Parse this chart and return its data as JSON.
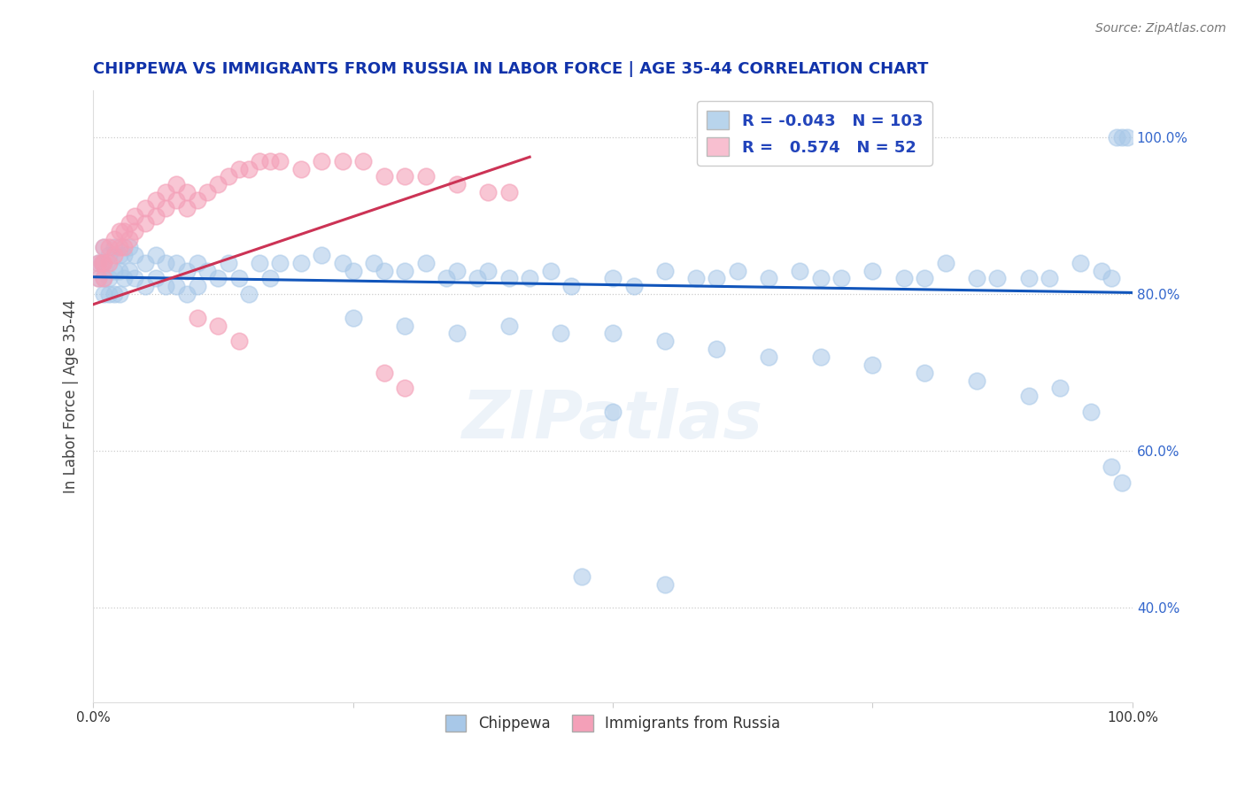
{
  "title": "CHIPPEWA VS IMMIGRANTS FROM RUSSIA IN LABOR FORCE | AGE 35-44 CORRELATION CHART",
  "source": "Source: ZipAtlas.com",
  "ylabel": "In Labor Force | Age 35-44",
  "legend_label1": "Chippewa",
  "legend_label2": "Immigrants from Russia",
  "R1": -0.043,
  "N1": 103,
  "R2": 0.574,
  "N2": 52,
  "xlim": [
    0.0,
    1.0
  ],
  "ylim": [
    0.28,
    1.06
  ],
  "yticks": [
    0.4,
    0.6,
    0.8,
    1.0
  ],
  "ytick_labels": [
    "40.0%",
    "60.0%",
    "80.0%",
    "100.0%"
  ],
  "color_blue": "#a8c8e8",
  "color_pink": "#f4a0b8",
  "trendline_blue": "#1155bb",
  "trendline_pink": "#cc3355",
  "legend_box_blue": "#b8d4ec",
  "legend_box_pink": "#f8bfd0",
  "background_color": "#ffffff",
  "grid_color": "#cccccc",
  "watermark": "ZIPatlas",
  "blue_x": [
    0.005,
    0.005,
    0.008,
    0.01,
    0.01,
    0.01,
    0.01,
    0.015,
    0.015,
    0.015,
    0.02,
    0.02,
    0.02,
    0.025,
    0.025,
    0.025,
    0.03,
    0.03,
    0.035,
    0.035,
    0.04,
    0.04,
    0.05,
    0.05,
    0.06,
    0.06,
    0.07,
    0.07,
    0.08,
    0.08,
    0.09,
    0.09,
    0.1,
    0.1,
    0.11,
    0.12,
    0.13,
    0.14,
    0.15,
    0.16,
    0.17,
    0.18,
    0.2,
    0.22,
    0.24,
    0.25,
    0.27,
    0.28,
    0.3,
    0.32,
    0.34,
    0.35,
    0.37,
    0.38,
    0.4,
    0.42,
    0.44,
    0.46,
    0.5,
    0.52,
    0.55,
    0.58,
    0.6,
    0.62,
    0.65,
    0.68,
    0.7,
    0.72,
    0.75,
    0.78,
    0.8,
    0.82,
    0.85,
    0.87,
    0.9,
    0.92,
    0.95,
    0.97,
    0.98,
    0.985,
    0.99,
    0.995,
    0.25,
    0.3,
    0.35,
    0.4,
    0.45,
    0.5,
    0.55,
    0.6,
    0.65,
    0.7,
    0.75,
    0.8,
    0.85,
    0.9,
    0.93,
    0.96,
    0.98,
    0.99,
    0.5,
    0.47,
    0.55
  ],
  "blue_y": [
    0.84,
    0.82,
    0.84,
    0.84,
    0.86,
    0.82,
    0.8,
    0.85,
    0.82,
    0.8,
    0.86,
    0.83,
    0.8,
    0.85,
    0.83,
    0.8,
    0.85,
    0.82,
    0.86,
    0.83,
    0.85,
    0.82,
    0.84,
    0.81,
    0.85,
    0.82,
    0.84,
    0.81,
    0.84,
    0.81,
    0.83,
    0.8,
    0.84,
    0.81,
    0.83,
    0.82,
    0.84,
    0.82,
    0.8,
    0.84,
    0.82,
    0.84,
    0.84,
    0.85,
    0.84,
    0.83,
    0.84,
    0.83,
    0.83,
    0.84,
    0.82,
    0.83,
    0.82,
    0.83,
    0.82,
    0.82,
    0.83,
    0.81,
    0.82,
    0.81,
    0.83,
    0.82,
    0.82,
    0.83,
    0.82,
    0.83,
    0.82,
    0.82,
    0.83,
    0.82,
    0.82,
    0.84,
    0.82,
    0.82,
    0.82,
    0.82,
    0.84,
    0.83,
    0.82,
    1.0,
    1.0,
    1.0,
    0.77,
    0.76,
    0.75,
    0.76,
    0.75,
    0.75,
    0.74,
    0.73,
    0.72,
    0.72,
    0.71,
    0.7,
    0.69,
    0.67,
    0.68,
    0.65,
    0.58,
    0.56,
    0.65,
    0.44,
    0.43
  ],
  "pink_x": [
    0.005,
    0.005,
    0.008,
    0.01,
    0.01,
    0.01,
    0.015,
    0.015,
    0.02,
    0.02,
    0.025,
    0.025,
    0.03,
    0.03,
    0.035,
    0.035,
    0.04,
    0.04,
    0.05,
    0.05,
    0.06,
    0.06,
    0.07,
    0.07,
    0.08,
    0.08,
    0.09,
    0.09,
    0.1,
    0.11,
    0.12,
    0.13,
    0.14,
    0.15,
    0.16,
    0.17,
    0.18,
    0.2,
    0.22,
    0.24,
    0.26,
    0.28,
    0.3,
    0.32,
    0.35,
    0.38,
    0.4,
    0.1,
    0.12,
    0.14,
    0.28,
    0.3
  ],
  "pink_y": [
    0.84,
    0.82,
    0.84,
    0.86,
    0.84,
    0.82,
    0.86,
    0.84,
    0.87,
    0.85,
    0.88,
    0.86,
    0.88,
    0.86,
    0.89,
    0.87,
    0.9,
    0.88,
    0.91,
    0.89,
    0.92,
    0.9,
    0.93,
    0.91,
    0.94,
    0.92,
    0.93,
    0.91,
    0.92,
    0.93,
    0.94,
    0.95,
    0.96,
    0.96,
    0.97,
    0.97,
    0.97,
    0.96,
    0.97,
    0.97,
    0.97,
    0.95,
    0.95,
    0.95,
    0.94,
    0.93,
    0.93,
    0.77,
    0.76,
    0.74,
    0.7,
    0.68
  ],
  "blue_trendline_x": [
    0.0,
    1.0
  ],
  "blue_trendline_y": [
    0.822,
    0.802
  ],
  "pink_trendline_x": [
    0.0,
    0.42
  ],
  "pink_trendline_y": [
    0.787,
    0.975
  ]
}
